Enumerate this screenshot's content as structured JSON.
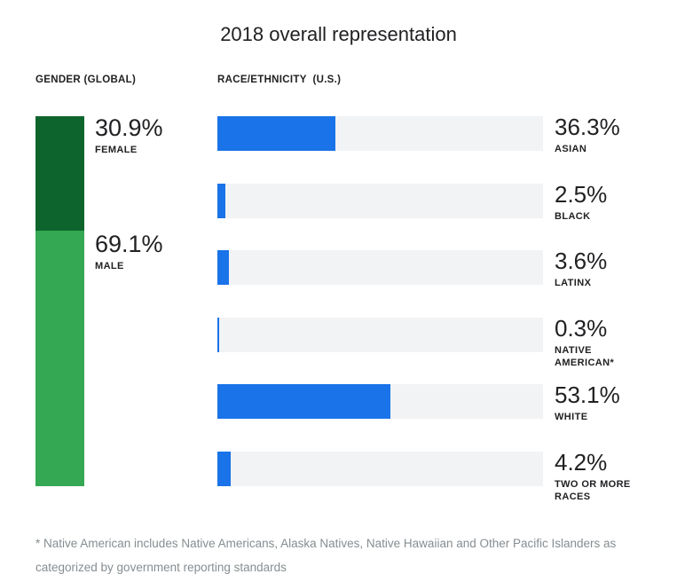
{
  "title": "2018 overall representation",
  "colors": {
    "female_green": "#0d652d",
    "male_green": "#34a853",
    "bar_blue": "#1a73e8",
    "bar_track_gray": "#f1f3f4",
    "text_dark": "#212124",
    "footnote_gray": "#868d91"
  },
  "gender": {
    "header": "GENDER (GLOBAL)",
    "segments": [
      {
        "label": "FEMALE",
        "value": "30.9%",
        "percent": 30.9
      },
      {
        "label": "MALE",
        "value": "69.1%",
        "percent": 69.1
      }
    ]
  },
  "race": {
    "header": "RACE/ETHNICITY  (U.S.)",
    "rows": [
      {
        "label": "ASIAN",
        "value": "36.3%",
        "percent": 36.3
      },
      {
        "label": "BLACK",
        "value": "2.5%",
        "percent": 2.5
      },
      {
        "label": "LATINX",
        "value": "3.6%",
        "percent": 3.6
      },
      {
        "label": "NATIVE AMERICAN*",
        "value": "0.3%",
        "percent": 0.3
      },
      {
        "label": "WHITE",
        "value": "53.1%",
        "percent": 53.1
      },
      {
        "label": "TWO OR MORE RACES",
        "value": "4.2%",
        "percent": 4.2
      }
    ]
  },
  "footnote": "* Native American includes Native Americans, Alaska Natives, Native Hawaiian and Other Pacific Islanders as categorized by government reporting standards",
  "chart_data": [
    {
      "type": "bar",
      "subtype": "vertical-stacked",
      "title": "GENDER (GLOBAL)",
      "categories": [
        "FEMALE",
        "MALE"
      ],
      "values": [
        30.9,
        69.1
      ],
      "unit": "%",
      "colors": [
        "#0d652d",
        "#34a853"
      ],
      "legend": "off",
      "grid": "off"
    },
    {
      "type": "bar",
      "subtype": "horizontal",
      "title": "RACE/ETHNICITY (U.S.)",
      "categories": [
        "ASIAN",
        "BLACK",
        "LATINX",
        "NATIVE AMERICAN*",
        "WHITE",
        "TWO OR MORE RACES"
      ],
      "values": [
        36.3,
        2.5,
        3.6,
        0.3,
        53.1,
        4.2
      ],
      "unit": "%",
      "xlim": [
        0,
        100
      ],
      "bar_color": "#1a73e8",
      "track_color": "#f1f3f4",
      "legend": "off",
      "grid": "off"
    }
  ]
}
